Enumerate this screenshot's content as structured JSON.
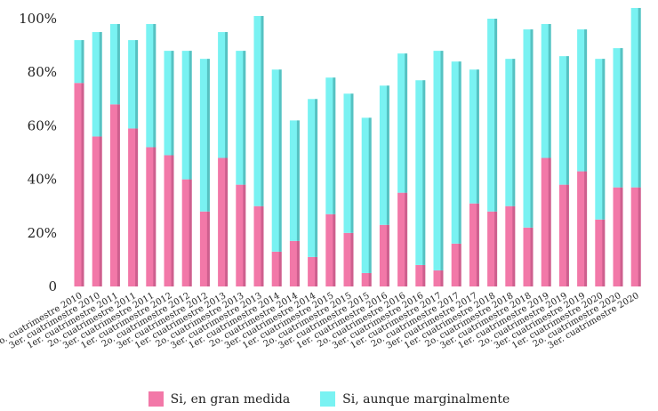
{
  "chart_data": {
    "type": "bar",
    "stacked": true,
    "title": "",
    "xlabel": "",
    "ylabel": "",
    "ylim": [
      0,
      100
    ],
    "y_ticks": [
      "0",
      "20%",
      "40%",
      "60%",
      "80%",
      "100%"
    ],
    "grid": false,
    "legend_position": "bottom",
    "categories": [
      "2o. cuatrimestre 2010",
      "3er. cuatrimestre 2010",
      "1er. cuatrimestre 2011",
      "2o. cuatrimestre 2011",
      "3er. cuatrimestre 2011",
      "1er. cuatrimestre 2012",
      "2o. cuatrimestre 2012",
      "3er. cuatrimestre 2012",
      "1er. cuatrimestre 2013",
      "2o. cuatrimestre 2013",
      "3er. cuatrimestre 2013",
      "1er. cuatrimestre 2014",
      "2o. cuatrimestre 2014",
      "3er. cuatrimestre 2014",
      "1er. cuatrimestre 2015",
      "2o. cuatrimestre 2015",
      "3er. cuatrimestre 2015",
      "1er. cuatrimestre 2016",
      "2o. cuatrimestre 2016",
      "3er. cuatrimestre 2016",
      "1er. cuatrimestre 2017",
      "2o. cuatrimestre 2017",
      "3er. cuatrimestre 2017",
      "1er. cuatrimestre 2018",
      "2o. cuatrimestre 2018",
      "3er. cuatrimestre 2018",
      "1er. cuatrimestre 2019",
      "2o. cuatrimestre 2019",
      "3er. cuatrimestre 2019",
      "1er. cuatrimestre 2020",
      "2o. cuatrimestre 2020",
      "3er. cuatrimestre 2020"
    ],
    "series": [
      {
        "name": "Si, en gran medida",
        "color": "#f278a8",
        "values": [
          76,
          56,
          68,
          59,
          52,
          49,
          40,
          28,
          48,
          38,
          30,
          13,
          17,
          11,
          27,
          20,
          5,
          23,
          35,
          8,
          6,
          16,
          31,
          28,
          30,
          22,
          48,
          38,
          43,
          25,
          37,
          37
        ]
      },
      {
        "name": "Si, aunque marginalmente",
        "color": "#79f2f2",
        "values": [
          16,
          39,
          30,
          33,
          46,
          39,
          48,
          57,
          47,
          50,
          71,
          68,
          45,
          59,
          51,
          52,
          58,
          52,
          52,
          69,
          82,
          68,
          50,
          72,
          55,
          74,
          50,
          48,
          53,
          60,
          52,
          67
        ]
      }
    ]
  }
}
